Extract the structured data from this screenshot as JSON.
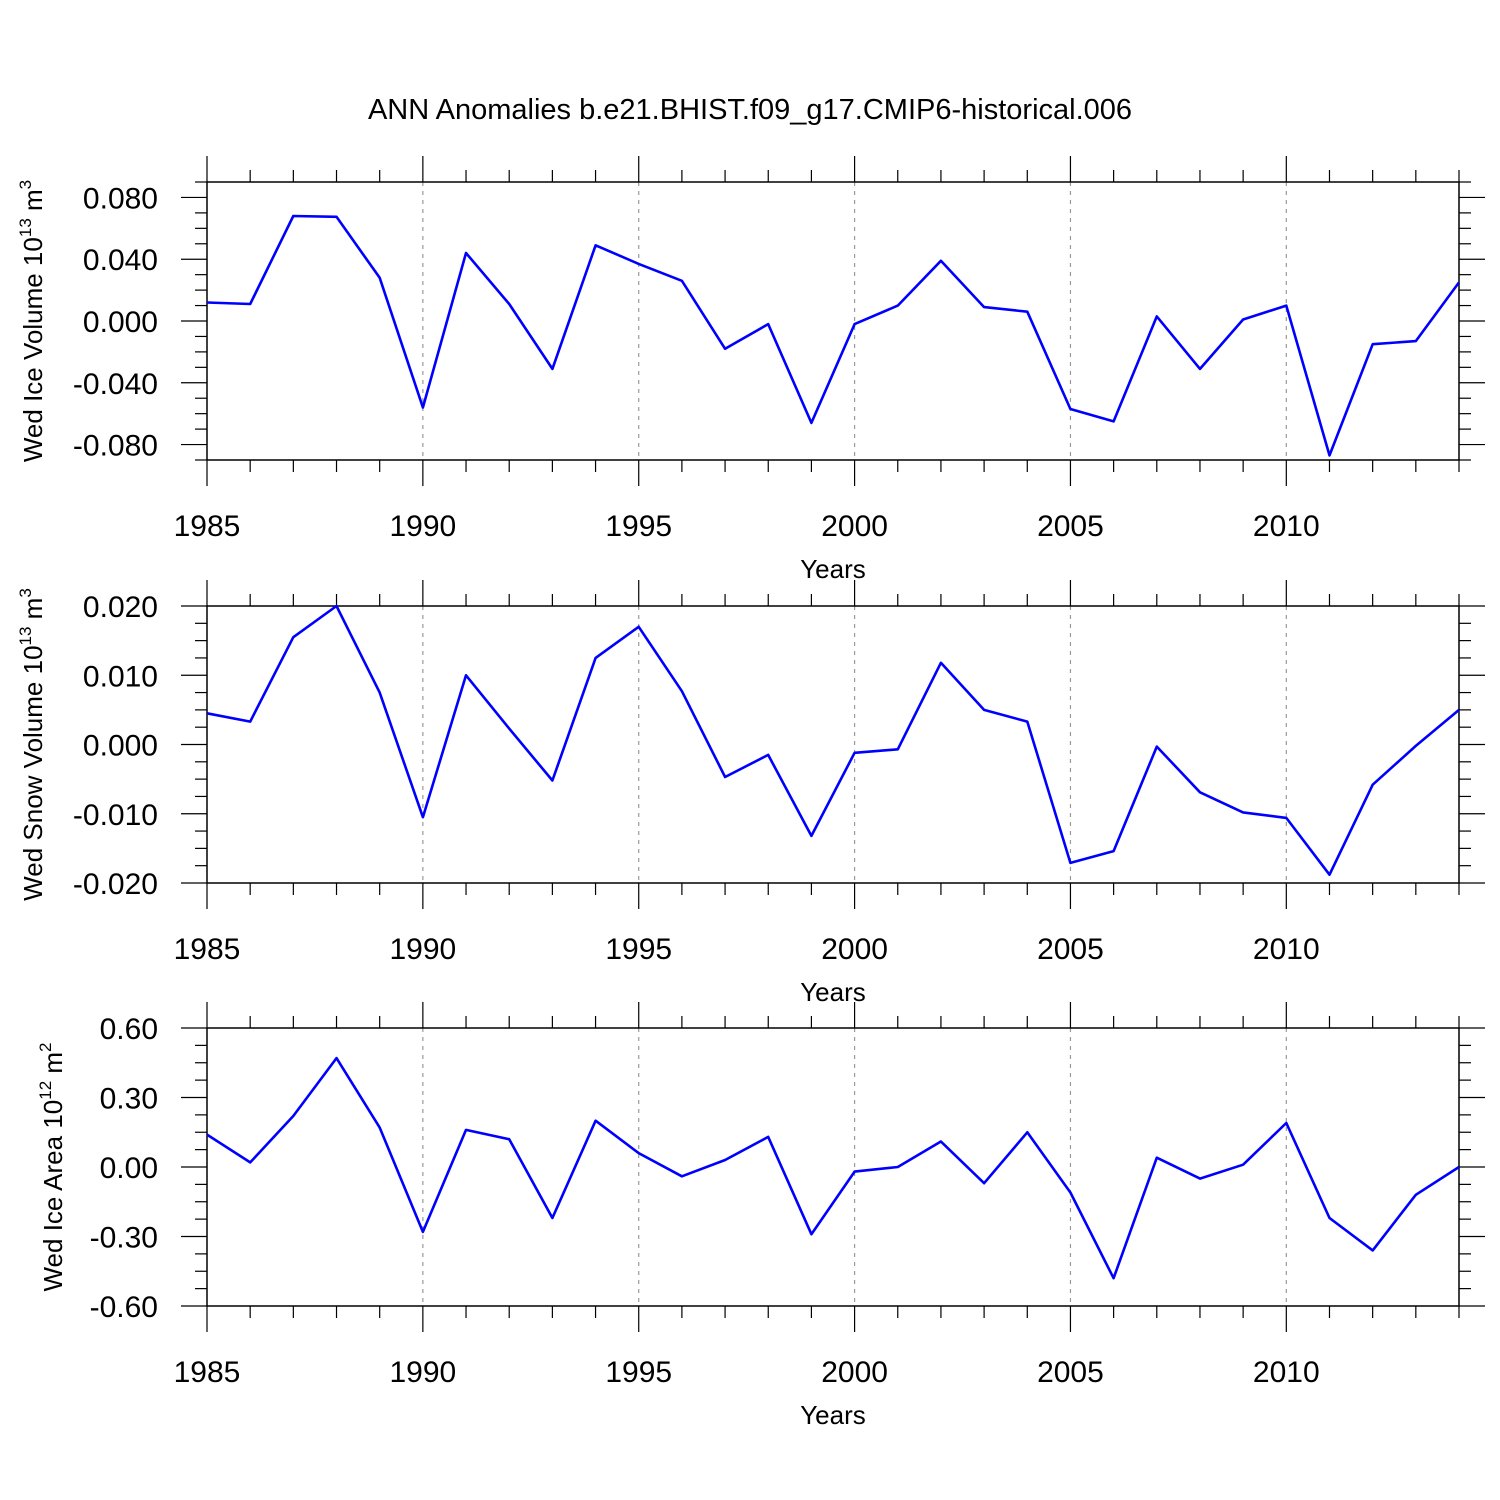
{
  "title": "ANN Anomalies b.e21.BHIST.f09_g17.CMIP6-historical.006",
  "line_color": "#0000ff",
  "chart_data": [
    {
      "type": "line",
      "ylabel": {
        "text": "Wed Ice Volume 10",
        "exp": "13",
        "unit": " m",
        "unit_exp": "3"
      },
      "xlabel": "Years",
      "xlim": [
        1985,
        2014
      ],
      "ylim": [
        -0.09,
        0.09
      ],
      "x_ticks": [
        "1985",
        "1990",
        "1995",
        "2000",
        "2005",
        "2010"
      ],
      "y_ticks": [
        {
          "v": 0.08,
          "label": "0.080"
        },
        {
          "v": 0.04,
          "label": "0.040"
        },
        {
          "v": 0.0,
          "label": "0.000"
        },
        {
          "v": -0.04,
          "label": "-0.040"
        },
        {
          "v": -0.08,
          "label": "-0.080"
        }
      ],
      "grid": "dashed vertical at labeled years",
      "x": [
        1985,
        1986,
        1987,
        1988,
        1989,
        1990,
        1991,
        1992,
        1993,
        1994,
        1995,
        1996,
        1997,
        1998,
        1999,
        2000,
        2001,
        2002,
        2003,
        2004,
        2005,
        2006,
        2007,
        2008,
        2009,
        2010,
        2011,
        2012,
        2013,
        2014
      ],
      "y": [
        0.012,
        0.011,
        0.068,
        0.0675,
        0.028,
        -0.056,
        0.044,
        0.011,
        -0.031,
        0.049,
        0.037,
        0.026,
        -0.018,
        -0.002,
        -0.066,
        -0.002,
        0.01,
        0.039,
        0.009,
        0.006,
        -0.057,
        -0.065,
        0.003,
        -0.031,
        0.001,
        0.01,
        -0.087,
        -0.015,
        -0.013,
        0.025
      ]
    },
    {
      "type": "line",
      "ylabel": {
        "text": "Wed Snow Volume 10",
        "exp": "13",
        "unit": " m",
        "unit_exp": "3"
      },
      "xlabel": "Years",
      "xlim": [
        1985,
        2014
      ],
      "ylim": [
        -0.02,
        0.02
      ],
      "x_ticks": [
        "1985",
        "1990",
        "1995",
        "2000",
        "2005",
        "2010"
      ],
      "y_ticks": [
        {
          "v": 0.02,
          "label": "0.020"
        },
        {
          "v": 0.01,
          "label": "0.010"
        },
        {
          "v": 0.0,
          "label": "0.000"
        },
        {
          "v": -0.01,
          "label": "-0.010"
        },
        {
          "v": -0.02,
          "label": "-0.020"
        }
      ],
      "grid": "dashed vertical at labeled years",
      "x": [
        1985,
        1986,
        1987,
        1988,
        1989,
        1990,
        1991,
        1992,
        1993,
        1994,
        1995,
        1996,
        1997,
        1998,
        1999,
        2000,
        2001,
        2002,
        2003,
        2004,
        2005,
        2006,
        2007,
        2008,
        2009,
        2010,
        2011,
        2012,
        2013,
        2014
      ],
      "y": [
        0.0045,
        0.0033,
        0.0155,
        0.02,
        0.0075,
        -0.0105,
        0.01,
        0.0023,
        -0.0052,
        0.0125,
        0.017,
        0.0077,
        -0.0047,
        -0.0015,
        -0.0132,
        -0.0012,
        -0.0007,
        0.0118,
        0.005,
        0.0033,
        -0.0171,
        -0.0154,
        -0.0003,
        -0.0069,
        -0.0098,
        -0.0106,
        -0.0188,
        -0.0058,
        -0.0002,
        0.005
      ]
    },
    {
      "type": "line",
      "ylabel": {
        "text": "Wed Ice Area 10",
        "exp": "12",
        "unit": " m",
        "unit_exp": "2"
      },
      "xlabel": "Years",
      "xlim": [
        1985,
        2014
      ],
      "ylim": [
        -0.6,
        0.6
      ],
      "x_ticks": [
        "1985",
        "1990",
        "1995",
        "2000",
        "2005",
        "2010"
      ],
      "y_ticks": [
        {
          "v": 0.6,
          "label": "0.60"
        },
        {
          "v": 0.3,
          "label": "0.30"
        },
        {
          "v": 0.0,
          "label": "0.00"
        },
        {
          "v": -0.3,
          "label": "-0.30"
        },
        {
          "v": -0.6,
          "label": "-0.60"
        }
      ],
      "grid": "dashed vertical at labeled years",
      "x": [
        1985,
        1986,
        1987,
        1988,
        1989,
        1990,
        1991,
        1992,
        1993,
        1994,
        1995,
        1996,
        1997,
        1998,
        1999,
        2000,
        2001,
        2002,
        2003,
        2004,
        2005,
        2006,
        2007,
        2008,
        2009,
        2010,
        2011,
        2012,
        2013,
        2014
      ],
      "y": [
        0.14,
        0.02,
        0.22,
        0.47,
        0.17,
        -0.28,
        0.16,
        0.12,
        -0.22,
        0.2,
        0.06,
        -0.04,
        0.03,
        0.13,
        -0.29,
        -0.02,
        0.0,
        0.11,
        -0.07,
        0.15,
        -0.11,
        -0.48,
        0.04,
        -0.05,
        0.01,
        0.19,
        -0.22,
        -0.36,
        -0.12,
        0.0
      ]
    }
  ]
}
